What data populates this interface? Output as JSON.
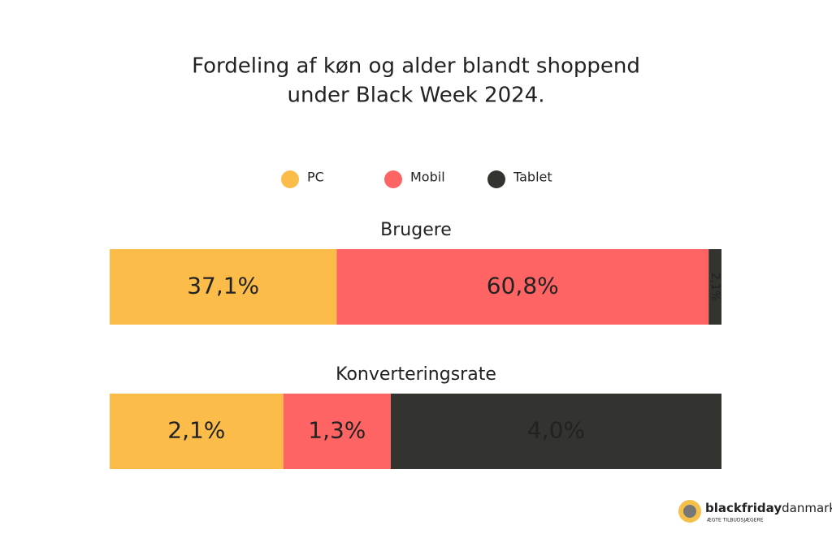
{
  "chart_data": {
    "type": "bar",
    "orientation": "horizontal",
    "stacked": true,
    "title": [
      "Fordeling af køn og alder blandt shoppend",
      "under Black Week 2024."
    ],
    "categories": [
      "Brugere",
      "Konverteringsrate"
    ],
    "series": [
      {
        "name": "PC",
        "color": "#fbbc4a",
        "values": [
          37.1,
          2.1
        ],
        "value_labels": [
          "37,1%",
          "2,1%"
        ]
      },
      {
        "name": "Mobil",
        "color": "#ff6464",
        "values": [
          60.8,
          1.3
        ],
        "value_labels": [
          "60,8%",
          "1,3%"
        ]
      },
      {
        "name": "Tablet",
        "color": "#333330",
        "values": [
          2.1,
          4.0
        ],
        "value_labels": [
          "2,1%",
          "4,0%"
        ]
      }
    ],
    "legend": "top"
  },
  "logo": {
    "name_bold": "blackfriday",
    "name_light": "danmark",
    "tagline": "ÆGTE TILBUDSJÆGERE"
  }
}
